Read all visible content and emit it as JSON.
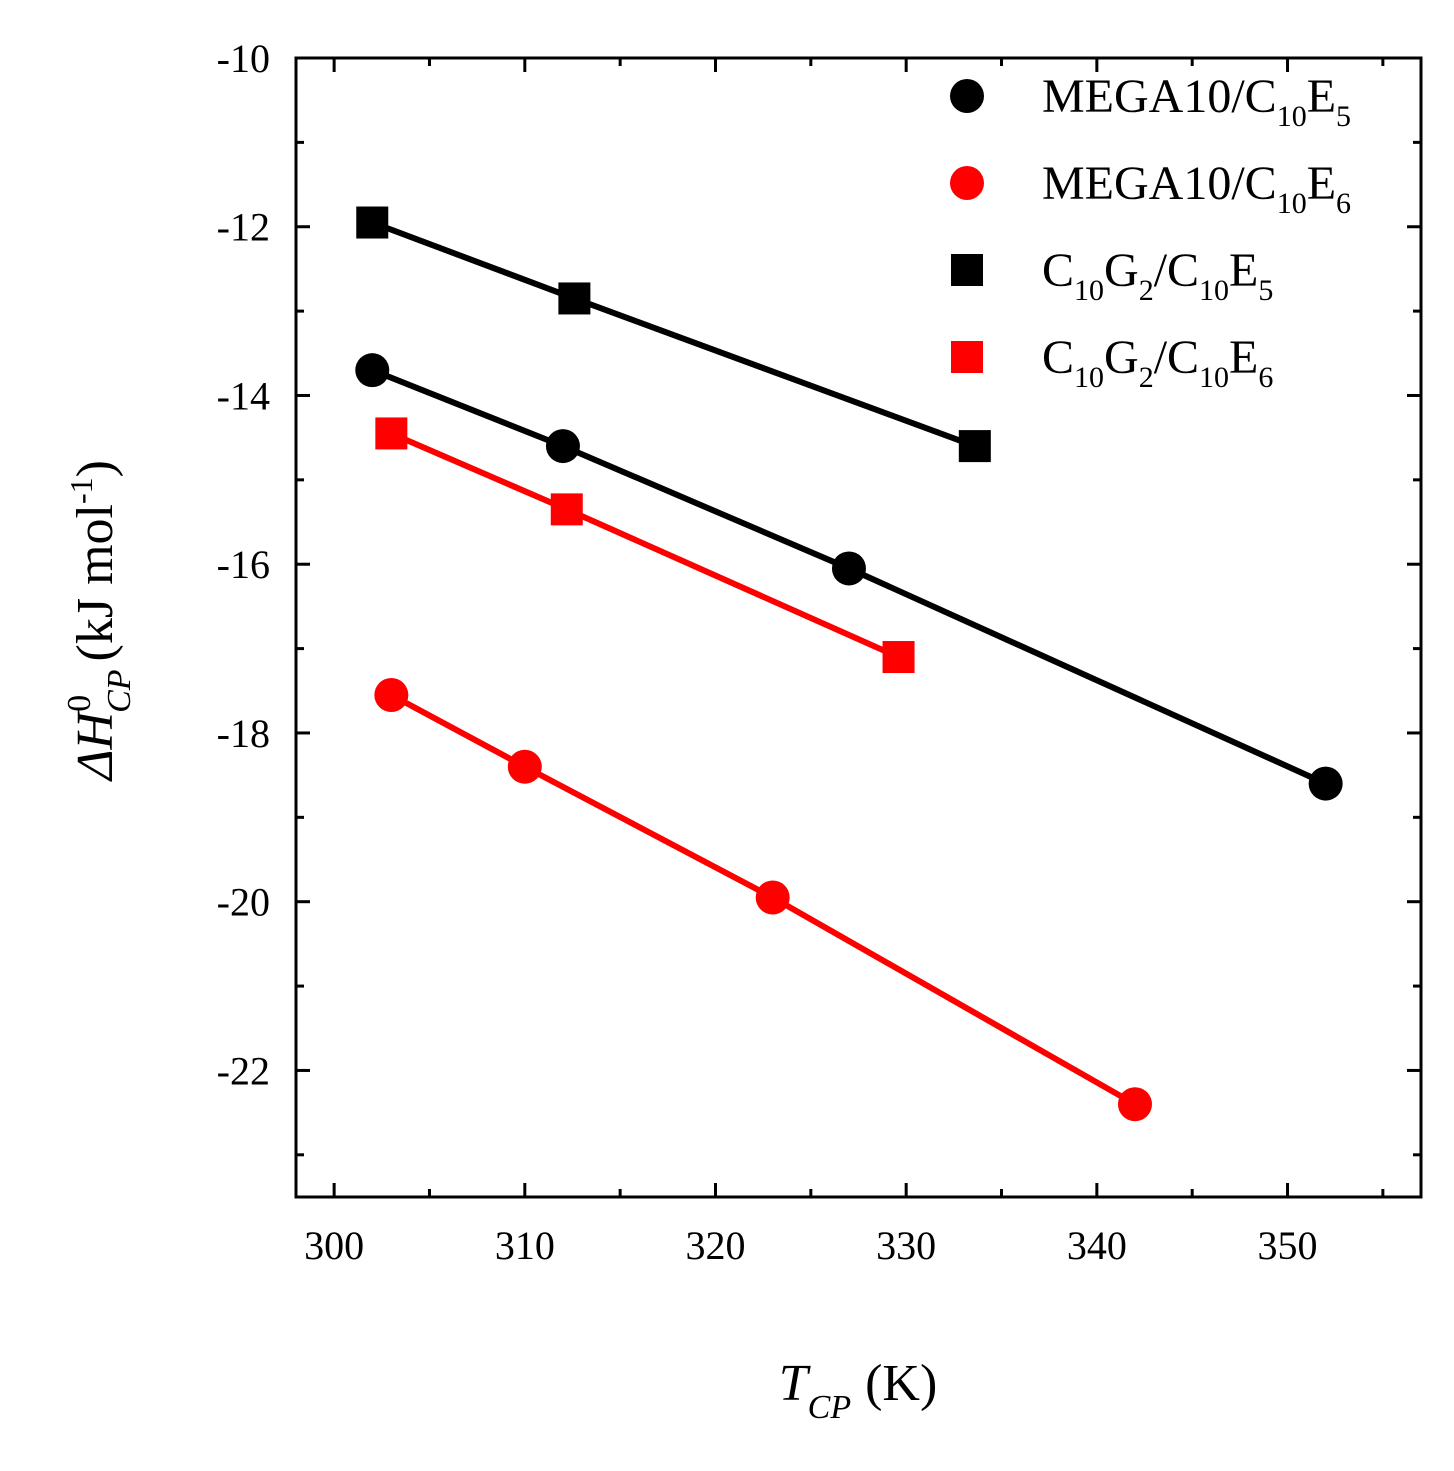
{
  "chart_data": {
    "type": "scatter",
    "xlabel": {
      "main": "T",
      "sub": "CP",
      "unit": "(K)"
    },
    "ylabel": {
      "main": "ΔH",
      "sup": "0",
      "sub": "CP",
      "unit_prefix": "(kJ mol",
      "unit_sup": "-1",
      "unit_suffix": ")"
    },
    "xlim": [
      298,
      357
    ],
    "ylim": [
      -23.5,
      -10
    ],
    "x_ticks": [
      "300",
      "310",
      "320",
      "330",
      "340",
      "350"
    ],
    "x_tick_values": [
      300,
      310,
      320,
      330,
      340,
      350
    ],
    "y_ticks": [
      "-10",
      "-12",
      "-14",
      "-16",
      "-18",
      "-20",
      "-22"
    ],
    "y_tick_values": [
      -10,
      -12,
      -14,
      -16,
      -18,
      -20,
      -22
    ],
    "legend_position": "top-right",
    "series": [
      {
        "name": "MEGA10/C10E5",
        "label_parts": [
          [
            "MEGA10/C",
            "n"
          ],
          [
            "10",
            "sub"
          ],
          [
            "E",
            "n"
          ],
          [
            "5",
            "sub"
          ]
        ],
        "marker": "circle",
        "color": "#000000",
        "x": [
          302,
          312,
          327,
          352
        ],
        "y": [
          -13.7,
          -14.6,
          -16.05,
          -18.6
        ]
      },
      {
        "name": "MEGA10/C10E6",
        "label_parts": [
          [
            "MEGA10/C",
            "n"
          ],
          [
            "10",
            "sub"
          ],
          [
            "E",
            "n"
          ],
          [
            "6",
            "sub"
          ]
        ],
        "marker": "circle",
        "color": "#ff0000",
        "x": [
          303,
          310,
          323,
          342
        ],
        "y": [
          -17.55,
          -18.4,
          -19.95,
          -22.4
        ]
      },
      {
        "name": "C10G2/C10E5",
        "label_parts": [
          [
            "C",
            "n"
          ],
          [
            "10",
            "sub"
          ],
          [
            "G",
            "n"
          ],
          [
            "2",
            "sub"
          ],
          [
            "/C",
            "n"
          ],
          [
            "10",
            "sub"
          ],
          [
            "E",
            "n"
          ],
          [
            "5",
            "sub"
          ]
        ],
        "marker": "square",
        "color": "#000000",
        "x": [
          302,
          312.6,
          333.6
        ],
        "y": [
          -11.95,
          -12.85,
          -14.6
        ]
      },
      {
        "name": "C10G2/C10E6",
        "label_parts": [
          [
            "C",
            "n"
          ],
          [
            "10",
            "sub"
          ],
          [
            "G",
            "n"
          ],
          [
            "2",
            "sub"
          ],
          [
            "/C",
            "n"
          ],
          [
            "10",
            "sub"
          ],
          [
            "E",
            "n"
          ],
          [
            "6",
            "sub"
          ]
        ],
        "marker": "square",
        "color": "#ff0000",
        "x": [
          303,
          312.2,
          329.6
        ],
        "y": [
          -14.45,
          -15.35,
          -17.1
        ]
      }
    ]
  }
}
